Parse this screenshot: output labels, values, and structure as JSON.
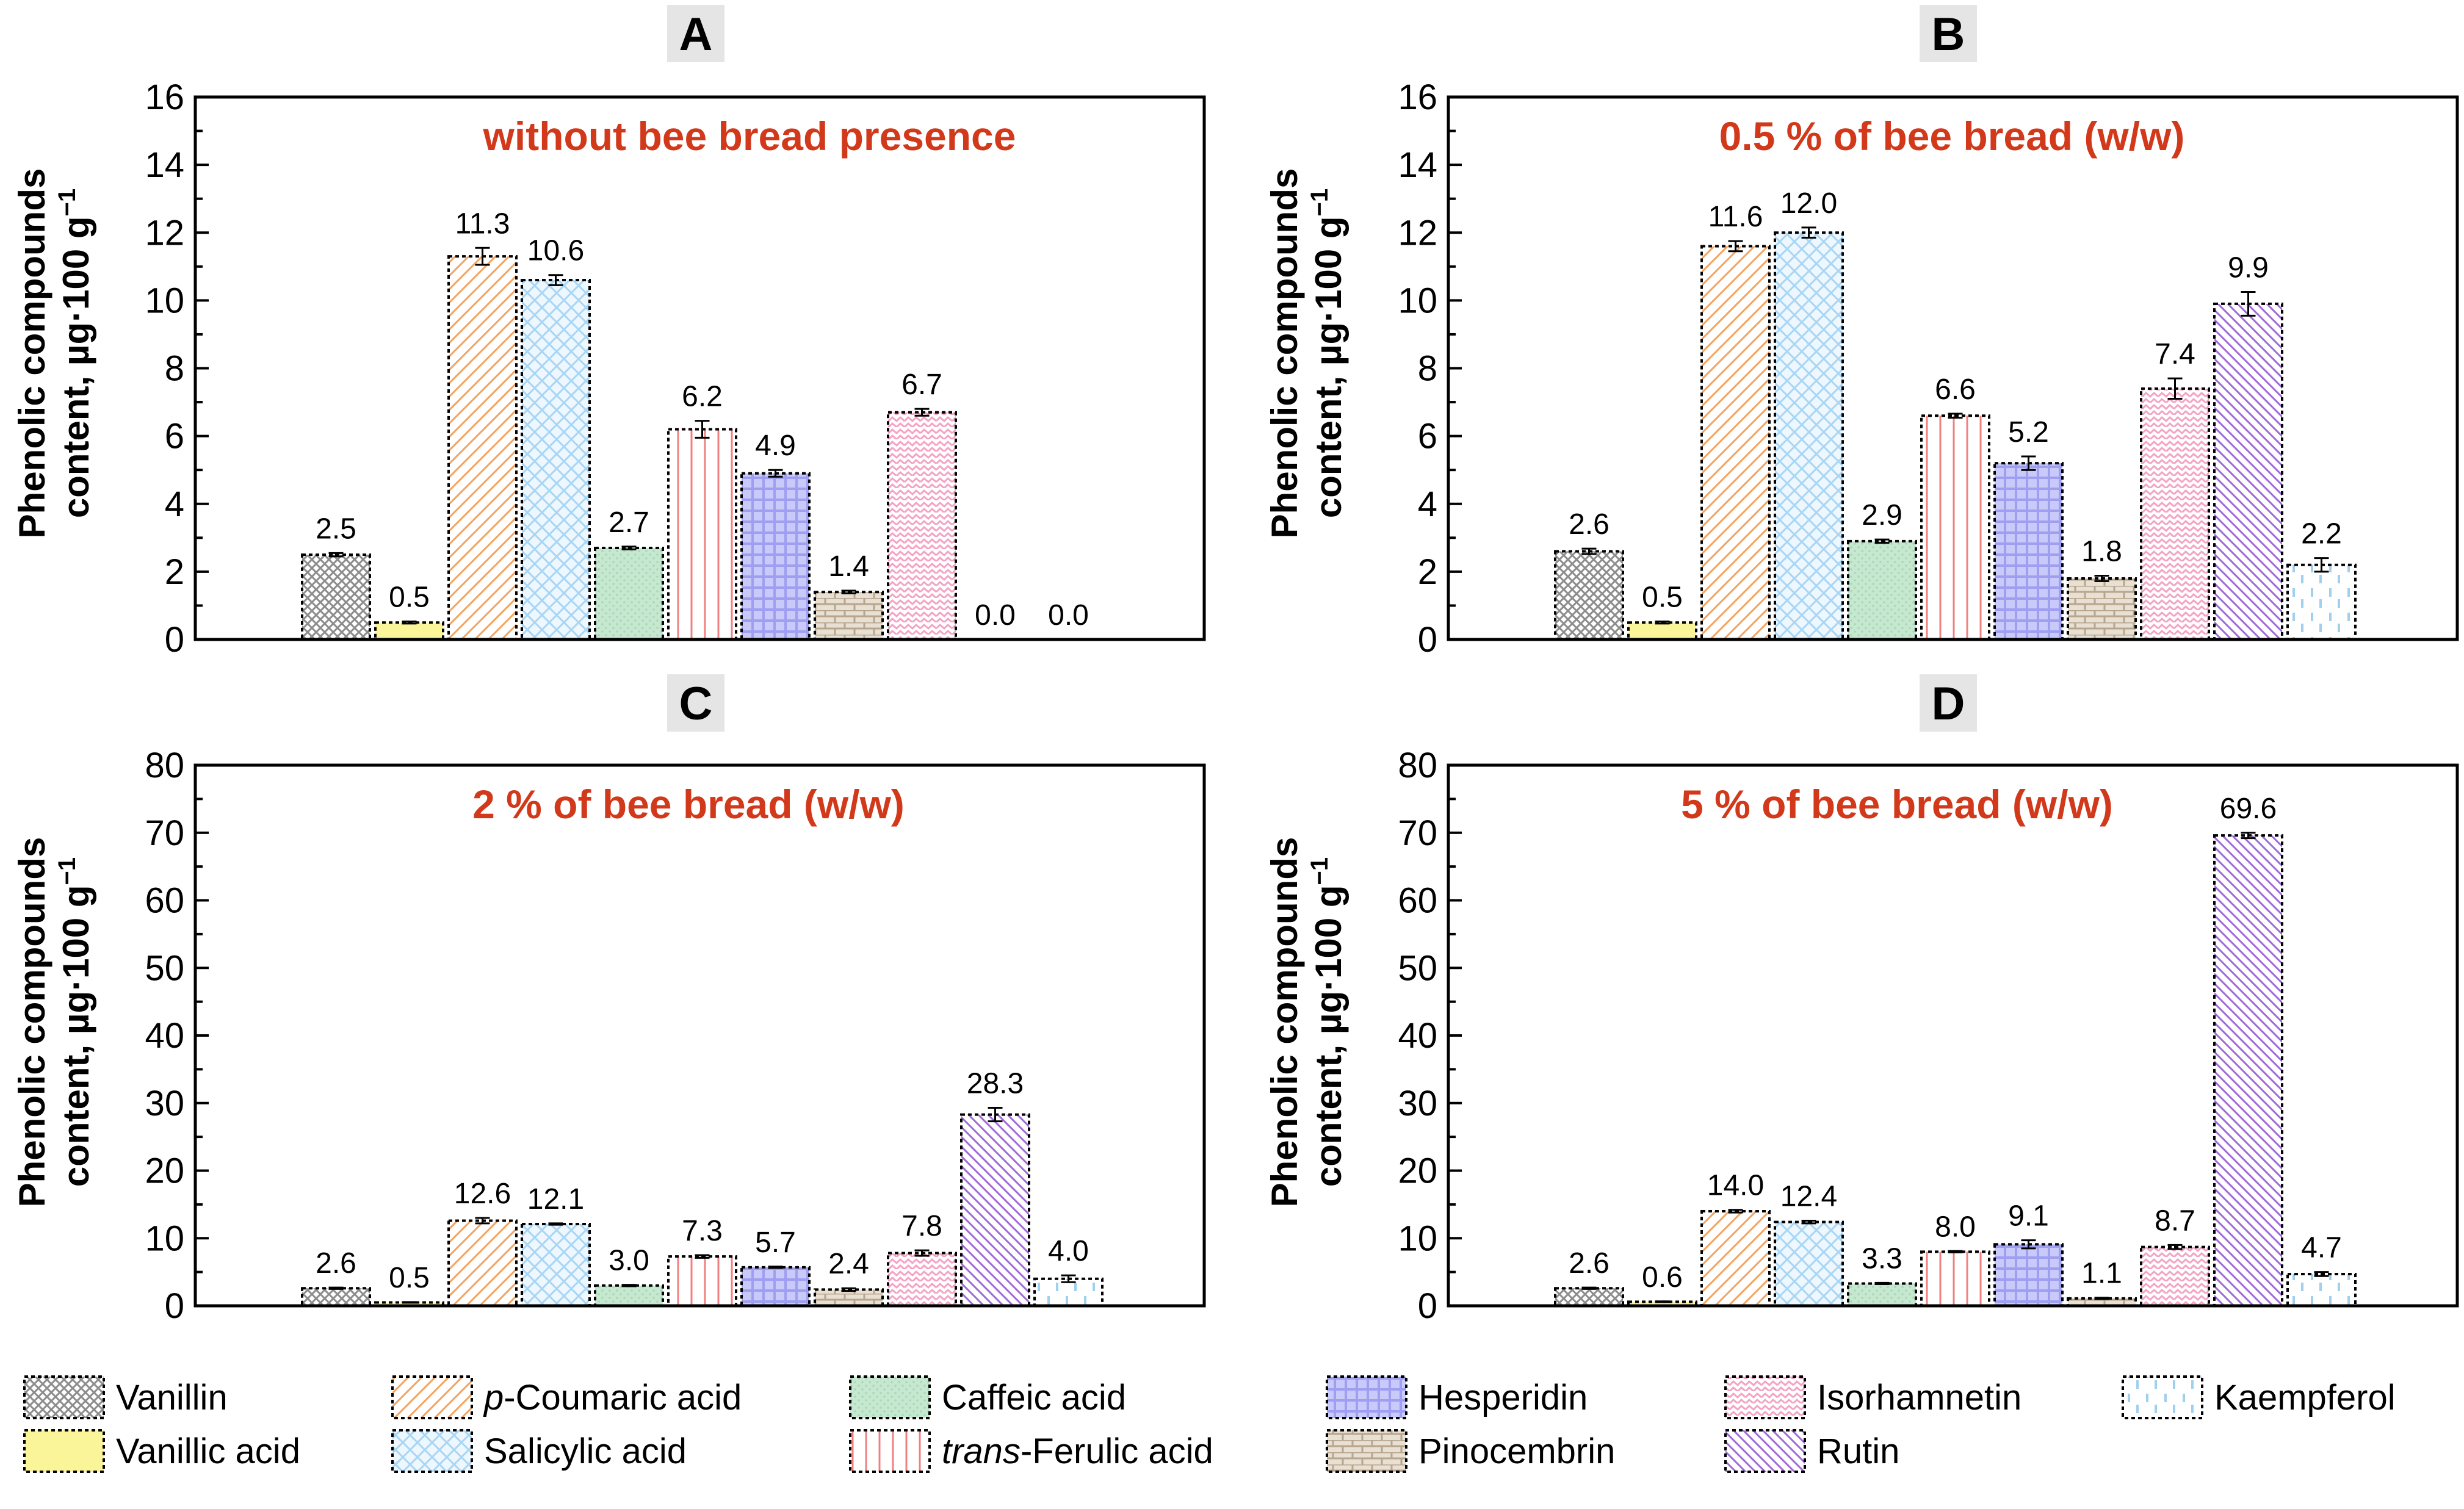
{
  "chart_data": [
    {
      "type": "bar",
      "panel": "A",
      "title": "without bee bread presence",
      "ylabel": "Phenolic compounds content, µg·100 g⁻¹",
      "ylim": [
        0,
        16
      ],
      "yticks": [
        0,
        2,
        4,
        6,
        8,
        10,
        12,
        14,
        16
      ],
      "categories": [
        "Vanillin",
        "Vanillic acid",
        "p-Coumaric acid",
        "Salicylic acid",
        "Caffeic acid",
        "trans-Ferulic acid",
        "Hesperidin",
        "Pinocembrin",
        "Isorhamnetin",
        "Rutin",
        "Kaempferol"
      ],
      "values": [
        2.5,
        0.5,
        11.3,
        10.6,
        2.7,
        6.2,
        4.9,
        1.4,
        6.7,
        0.0,
        0.0
      ],
      "labels": [
        "2.5",
        "0.5",
        "11.3",
        "10.6",
        "2.7",
        "6.2",
        "4.9",
        "1.4",
        "6.7",
        "0.0",
        "0.0"
      ],
      "errors": [
        0.05,
        0.03,
        0.25,
        0.15,
        0.04,
        0.25,
        0.1,
        0.04,
        0.1,
        0,
        0
      ]
    },
    {
      "type": "bar",
      "panel": "B",
      "title": "0.5 % of bee bread (w/w)",
      "ylabel": "Phenolic compounds content, µg·100 g⁻¹",
      "ylim": [
        0,
        16
      ],
      "yticks": [
        0,
        2,
        4,
        6,
        8,
        10,
        12,
        14,
        16
      ],
      "categories": [
        "Vanillin",
        "Vanillic acid",
        "p-Coumaric acid",
        "Salicylic acid",
        "Caffeic acid",
        "trans-Ferulic acid",
        "Hesperidin",
        "Pinocembrin",
        "Isorhamnetin",
        "Rutin",
        "Kaempferol"
      ],
      "values": [
        2.6,
        0.5,
        11.6,
        12.0,
        2.9,
        6.6,
        5.2,
        1.8,
        7.4,
        9.9,
        2.2
      ],
      "labels": [
        "2.6",
        "0.5",
        "11.6",
        "12.0",
        "2.9",
        "6.6",
        "5.2",
        "1.8",
        "7.4",
        "9.9",
        "2.2"
      ],
      "errors": [
        0.08,
        0.03,
        0.15,
        0.15,
        0.05,
        0.06,
        0.2,
        0.08,
        0.3,
        0.35,
        0.2
      ]
    },
    {
      "type": "bar",
      "panel": "C",
      "title": "2 % of bee bread (w/w)",
      "ylabel": "Phenolic compounds content, µg·100 g⁻¹",
      "ylim": [
        0,
        80
      ],
      "yticks": [
        0,
        10,
        20,
        30,
        40,
        50,
        60,
        70,
        80
      ],
      "categories": [
        "Vanillin",
        "Vanillic acid",
        "p-Coumaric acid",
        "Salicylic acid",
        "Caffeic acid",
        "trans-Ferulic acid",
        "Hesperidin",
        "Pinocembrin",
        "Isorhamnetin",
        "Rutin",
        "Kaempferol"
      ],
      "values": [
        2.6,
        0.5,
        12.6,
        12.1,
        3.0,
        7.3,
        5.7,
        2.4,
        7.8,
        28.3,
        4.0
      ],
      "labels": [
        "2.6",
        "0.5",
        "12.6",
        "12.1",
        "3.0",
        "7.3",
        "5.7",
        "2.4",
        "7.8",
        "28.3",
        "4.0"
      ],
      "errors": [
        0.1,
        0.05,
        0.4,
        0.1,
        0.1,
        0.2,
        0.1,
        0.2,
        0.4,
        1.0,
        0.5
      ]
    },
    {
      "type": "bar",
      "panel": "D",
      "title": "5 % of bee bread (w/w)",
      "ylabel": "Phenolic compounds content, µg·100 g⁻¹",
      "ylim": [
        0,
        80
      ],
      "yticks": [
        0,
        10,
        20,
        30,
        40,
        50,
        60,
        70,
        80
      ],
      "categories": [
        "Vanillin",
        "Vanillic acid",
        "p-Coumaric acid",
        "Salicylic acid",
        "Caffeic acid",
        "trans-Ferulic acid",
        "Hesperidin",
        "Pinocembrin",
        "Isorhamnetin",
        "Rutin",
        "Kaempferol"
      ],
      "values": [
        2.6,
        0.6,
        14.0,
        12.4,
        3.3,
        8.0,
        9.1,
        1.1,
        8.7,
        69.6,
        4.7
      ],
      "labels": [
        "2.6",
        "0.6",
        "14.0",
        "12.4",
        "3.3",
        "8.0",
        "9.1",
        "1.1",
        "8.7",
        "69.6",
        "4.7"
      ],
      "errors": [
        0.1,
        0.05,
        0.2,
        0.2,
        0.1,
        0.1,
        0.6,
        0.1,
        0.3,
        0.4,
        0.3
      ]
    }
  ],
  "legend": {
    "items": [
      {
        "name": "Vanillin",
        "prefix": "",
        "rest": "Vanillin",
        "color": "#9a9a9a",
        "pattern": "crosshatch"
      },
      {
        "name": "Vanillic acid",
        "prefix": "",
        "rest": "Vanillic acid",
        "color": "#fbf59a",
        "pattern": "solid"
      },
      {
        "name": "p-Coumaric acid",
        "prefix": "p",
        "rest": "-Coumaric acid",
        "color": "#f4a460",
        "pattern": "diagonal"
      },
      {
        "name": "Salicylic acid",
        "prefix": "",
        "rest": "Salicylic acid",
        "color": "#a8d6f5",
        "pattern": "diamond"
      },
      {
        "name": "Caffeic acid",
        "prefix": "",
        "rest": "Caffeic acid",
        "color": "#c7e8d0",
        "pattern": "dots"
      },
      {
        "name": "trans-Ferulic acid",
        "prefix": "trans",
        "rest": "-Ferulic acid",
        "color": "#f08080",
        "pattern": "vertical"
      },
      {
        "name": "Hesperidin",
        "prefix": "",
        "rest": "Hesperidin",
        "color": "#9f9ff2",
        "pattern": "grid"
      },
      {
        "name": "Pinocembrin",
        "prefix": "",
        "rest": "Pinocembrin",
        "color": "#b7a58e",
        "pattern": "brick"
      },
      {
        "name": "Isorhamnetin",
        "prefix": "",
        "rest": "Isorhamnetin",
        "color": "#f4a3c4",
        "pattern": "zigzag"
      },
      {
        "name": "Rutin",
        "prefix": "",
        "rest": "Rutin",
        "color": "#a06ad8",
        "pattern": "diagonal-dense"
      },
      {
        "name": "Kaempferol",
        "prefix": "",
        "rest": "Kaempferol",
        "color": "#9fd0ee",
        "pattern": "dashes"
      }
    ]
  }
}
